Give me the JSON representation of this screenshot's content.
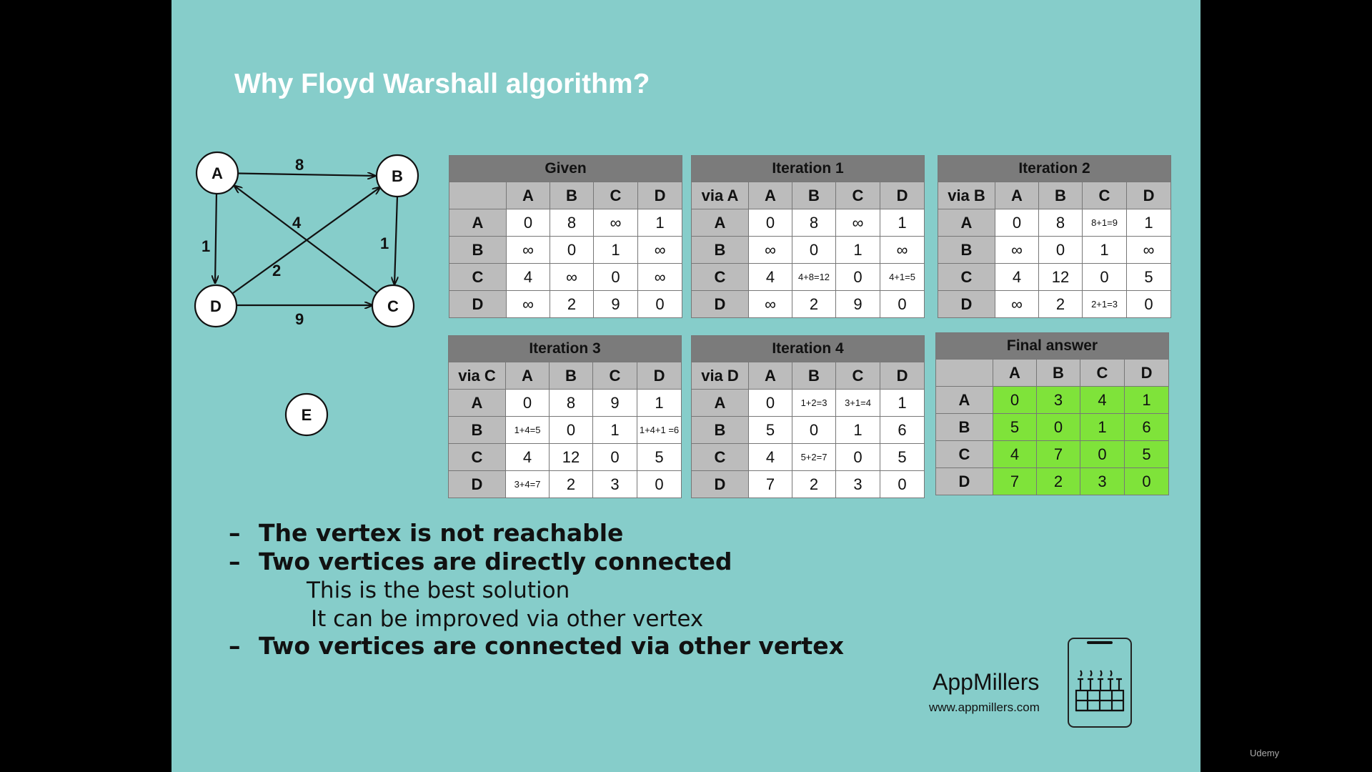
{
  "slide": {
    "title": "Why Floyd Warshall algorithm?"
  },
  "graph": {
    "nodes": [
      "A",
      "B",
      "C",
      "D",
      "E"
    ],
    "edges": [
      {
        "from": "A",
        "to": "B",
        "weight": "8"
      },
      {
        "from": "A",
        "to": "D",
        "weight": "1"
      },
      {
        "from": "B",
        "to": "C",
        "weight": "1"
      },
      {
        "from": "C",
        "to": "A",
        "weight": "4"
      },
      {
        "from": "D",
        "to": "B",
        "weight": "2"
      },
      {
        "from": "D",
        "to": "C",
        "weight": "9"
      }
    ]
  },
  "tables": {
    "given": {
      "caption": "Given",
      "corner": "",
      "cols": [
        "A",
        "B",
        "C",
        "D"
      ],
      "rows": [
        {
          "label": "A",
          "cells": [
            "0",
            "8",
            "∞",
            "1"
          ]
        },
        {
          "label": "B",
          "cells": [
            "∞",
            "0",
            "1",
            "∞"
          ]
        },
        {
          "label": "C",
          "cells": [
            "4",
            "∞",
            "0",
            "∞"
          ]
        },
        {
          "label": "D",
          "cells": [
            "∞",
            "2",
            "9",
            "0"
          ]
        }
      ]
    },
    "iter1": {
      "caption": "Iteration 1",
      "corner": "via A",
      "cols": [
        "A",
        "B",
        "C",
        "D"
      ],
      "rows": [
        {
          "label": "A",
          "cells": [
            "0",
            "8",
            "∞",
            "1"
          ]
        },
        {
          "label": "B",
          "cells": [
            "∞",
            "0",
            "1",
            "∞"
          ]
        },
        {
          "label": "C",
          "cells": [
            "4",
            "4+8=12",
            "0",
            "4+1=5"
          ]
        },
        {
          "label": "D",
          "cells": [
            "∞",
            "2",
            "9",
            "0"
          ]
        }
      ]
    },
    "iter2": {
      "caption": "Iteration 2",
      "corner": "via B",
      "cols": [
        "A",
        "B",
        "C",
        "D"
      ],
      "rows": [
        {
          "label": "A",
          "cells": [
            "0",
            "8",
            "8+1=9",
            "1"
          ]
        },
        {
          "label": "B",
          "cells": [
            "∞",
            "0",
            "1",
            "∞"
          ]
        },
        {
          "label": "C",
          "cells": [
            "4",
            "12",
            "0",
            "5"
          ]
        },
        {
          "label": "D",
          "cells": [
            "∞",
            "2",
            "2+1=3",
            "0"
          ]
        }
      ]
    },
    "iter3": {
      "caption": "Iteration 3",
      "corner": "via C",
      "cols": [
        "A",
        "B",
        "C",
        "D"
      ],
      "rows": [
        {
          "label": "A",
          "cells": [
            "0",
            "8",
            "9",
            "1"
          ]
        },
        {
          "label": "B",
          "cells": [
            "1+4=5",
            "0",
            "1",
            "1+4+1 =6"
          ]
        },
        {
          "label": "C",
          "cells": [
            "4",
            "12",
            "0",
            "5"
          ]
        },
        {
          "label": "D",
          "cells": [
            "3+4=7",
            "2",
            "3",
            "0"
          ]
        }
      ]
    },
    "iter4": {
      "caption": "Iteration 4",
      "corner": "via D",
      "cols": [
        "A",
        "B",
        "C",
        "D"
      ],
      "rows": [
        {
          "label": "A",
          "cells": [
            "0",
            "1+2=3",
            "3+1=4",
            "1"
          ]
        },
        {
          "label": "B",
          "cells": [
            "5",
            "0",
            "1",
            "6"
          ]
        },
        {
          "label": "C",
          "cells": [
            "4",
            "5+2=7",
            "0",
            "5"
          ]
        },
        {
          "label": "D",
          "cells": [
            "7",
            "2",
            "3",
            "0"
          ]
        }
      ]
    },
    "final": {
      "caption": "Final answer",
      "corner": "",
      "cols": [
        "A",
        "B",
        "C",
        "D"
      ],
      "rows": [
        {
          "label": "A",
          "cells": [
            "0",
            "3",
            "4",
            "1"
          ]
        },
        {
          "label": "B",
          "cells": [
            "5",
            "0",
            "1",
            "6"
          ]
        },
        {
          "label": "C",
          "cells": [
            "4",
            "7",
            "0",
            "5"
          ]
        },
        {
          "label": "D",
          "cells": [
            "7",
            "2",
            "3",
            "0"
          ]
        }
      ]
    }
  },
  "bullets": {
    "dash": "–",
    "line1": "The vertex is not reachable",
    "line2": "Two vertices are directly connected",
    "sub1": "This is the best solution",
    "sub2": "It can be improved via other vertex",
    "line3": "Two vertices are connected via other vertex"
  },
  "brand": {
    "name": "AppMillers",
    "url": "www.appmillers.com",
    "logo_icon": "factory-icon"
  },
  "watermark": "Udemy",
  "colors": {
    "slide_bg": "#86cdca",
    "header_gray": "#7b7b7b",
    "label_gray": "#bcbcbc",
    "final_green": "#7fe33a"
  }
}
